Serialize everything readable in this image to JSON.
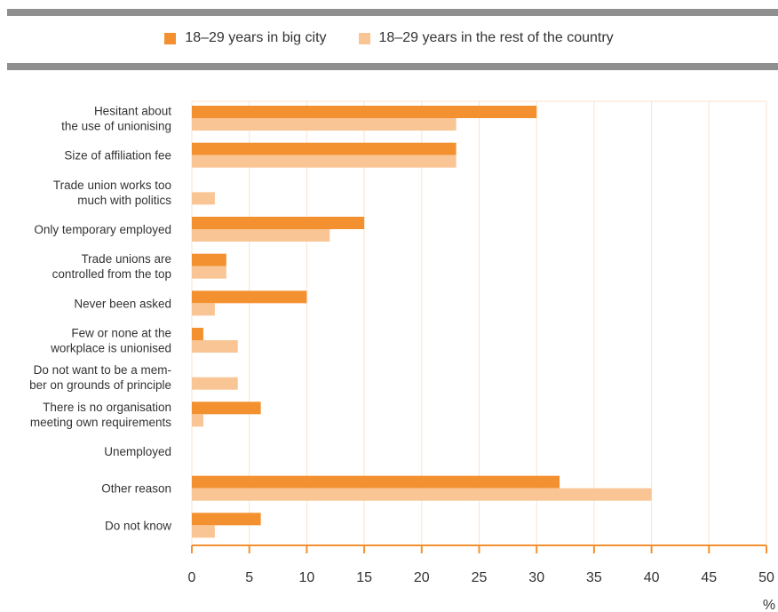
{
  "chart_data": {
    "type": "bar",
    "orientation": "horizontal",
    "categories": [
      [
        "Hesitant about",
        "the use of unionising"
      ],
      [
        "Size of affiliation fee"
      ],
      [
        "Trade union works too",
        "much with politics"
      ],
      [
        "Only temporary employed"
      ],
      [
        "Trade unions are",
        "controlled from the top"
      ],
      [
        "Never been asked"
      ],
      [
        "Few or none at the",
        "workplace is unionised"
      ],
      [
        "Do not want to be a mem-",
        "ber on grounds of principle"
      ],
      [
        "There is no organisation",
        "meeting own requirements"
      ],
      [
        "Unemployed"
      ],
      [
        "Other reason"
      ],
      [
        "Do not know"
      ]
    ],
    "series": [
      {
        "name": "18–29 years in big city",
        "color": "#f39130",
        "values": [
          30,
          23,
          0,
          15,
          3,
          10,
          1,
          0,
          6,
          0,
          32,
          6
        ]
      },
      {
        "name": "18–29 years in the rest of the country",
        "color": "#f9c595",
        "values": [
          23,
          23,
          2,
          12,
          3,
          2,
          4,
          4,
          1,
          0,
          40,
          2
        ]
      }
    ],
    "xlim": [
      0,
      50
    ],
    "xticks": [
      0,
      5,
      10,
      15,
      20,
      25,
      30,
      35,
      40,
      45,
      50
    ],
    "xunit": "%",
    "legend_position": "top-center",
    "grid": true,
    "grid_color": "#fbe3cc",
    "axis_color": "#f39130"
  }
}
